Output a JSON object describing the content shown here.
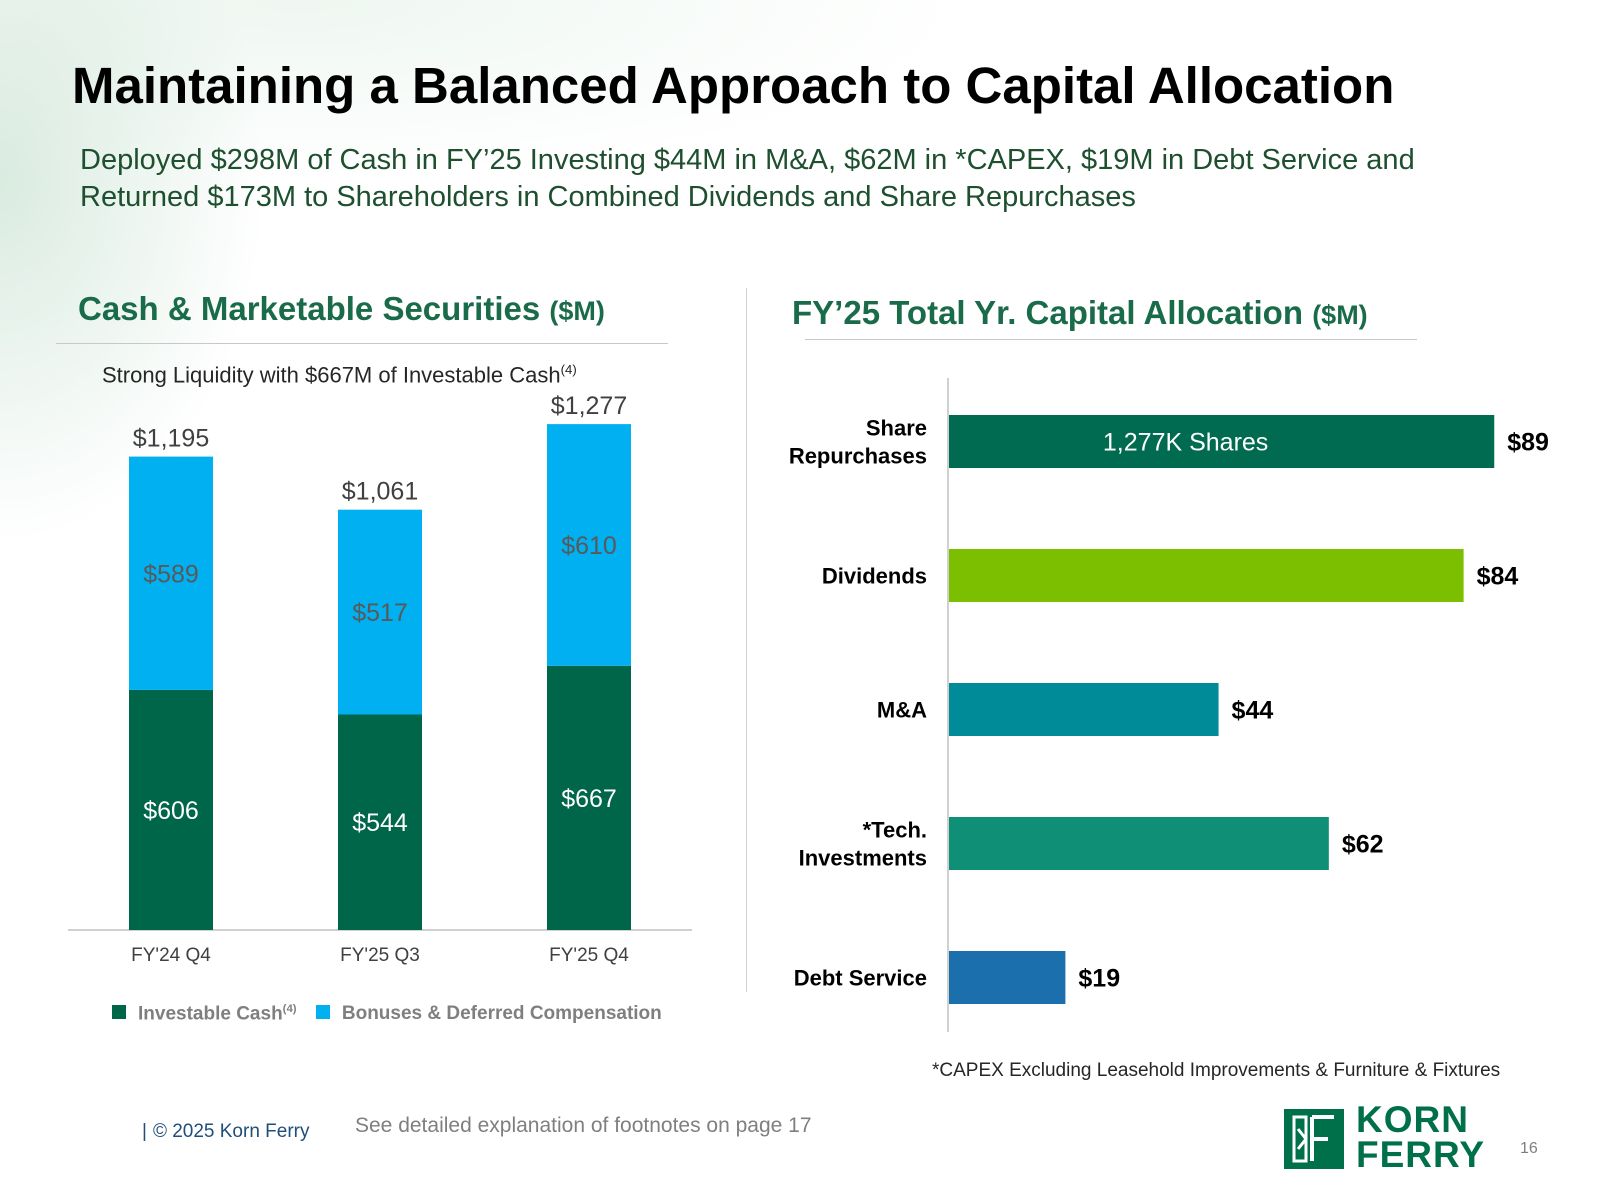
{
  "slide": {
    "title": "Maintaining a Balanced Approach to Capital Allocation",
    "subtitle_line1": "Deployed $298M of Cash in FY’25 Investing $44M in M&A, $62M in *CAPEX, $19M in Debt Service and",
    "subtitle_line2": "Returned $173M to Shareholders in Combined Dividends and Share Repurchases",
    "footer": {
      "copyright": "© 2025 Korn Ferry",
      "footnote_ref": "See detailed explanation of footnotes on page 17",
      "page_number": "16",
      "logo_line1": "KORN",
      "logo_line2": "FERRY"
    }
  },
  "left_panel": {
    "title": "Cash & Marketable Securities",
    "title_unit": "($M)",
    "caption": "Strong Liquidity with $667M of Investable Cash",
    "caption_sup": "(4)",
    "legend": {
      "investable": "Investable Cash",
      "investable_sup": "(4)",
      "bonuses": "Bonuses & Deferred Compensation"
    }
  },
  "right_panel": {
    "title": "FY’25 Total Yr. Capital Allocation",
    "title_unit": "($M)",
    "footnote": "*CAPEX Excluding Leasehold Improvements & Furniture & Fixtures"
  },
  "chart_data": [
    {
      "type": "bar",
      "stacked": true,
      "orientation": "vertical",
      "title": "Cash & Marketable Securities ($M)",
      "categories": [
        "FY'24 Q4",
        "FY'25 Q3",
        "FY'25 Q4"
      ],
      "series": [
        {
          "name": "Investable Cash(4)",
          "values": [
            606,
            544,
            667
          ],
          "labels": [
            "$606",
            "$544",
            "$667"
          ],
          "color": "#00664a"
        },
        {
          "name": "Bonuses & Deferred Compensation",
          "values": [
            589,
            517,
            610
          ],
          "labels": [
            "$589",
            "$517",
            "$610"
          ],
          "color": "#00b0f0"
        }
      ],
      "totals": [
        1195,
        1061,
        1277
      ],
      "total_labels": [
        "$1,195",
        "$1,061",
        "$1,277"
      ],
      "ylim": [
        0,
        1300
      ],
      "grid": false,
      "legend": "bottom"
    },
    {
      "type": "bar",
      "orientation": "horizontal",
      "title": "FY’25 Total Yr. Capital Allocation ($M)",
      "categories": [
        [
          "Share",
          "Repurchases"
        ],
        [
          "Dividends"
        ],
        [
          "M&A"
        ],
        [
          "*Tech.",
          "Investments"
        ],
        [
          "Debt Service"
        ]
      ],
      "values": [
        89,
        84,
        44,
        62,
        19
      ],
      "value_labels": [
        "$89",
        "$84",
        "$44",
        "$62",
        "$19"
      ],
      "colors": [
        "#006b50",
        "#7cbf00",
        "#008b99",
        "#0e8f76",
        "#1b6fad"
      ],
      "inner_labels": [
        "1,277K Shares",
        "",
        "",
        "",
        ""
      ],
      "xlim": [
        0,
        95
      ],
      "grid": false
    }
  ]
}
